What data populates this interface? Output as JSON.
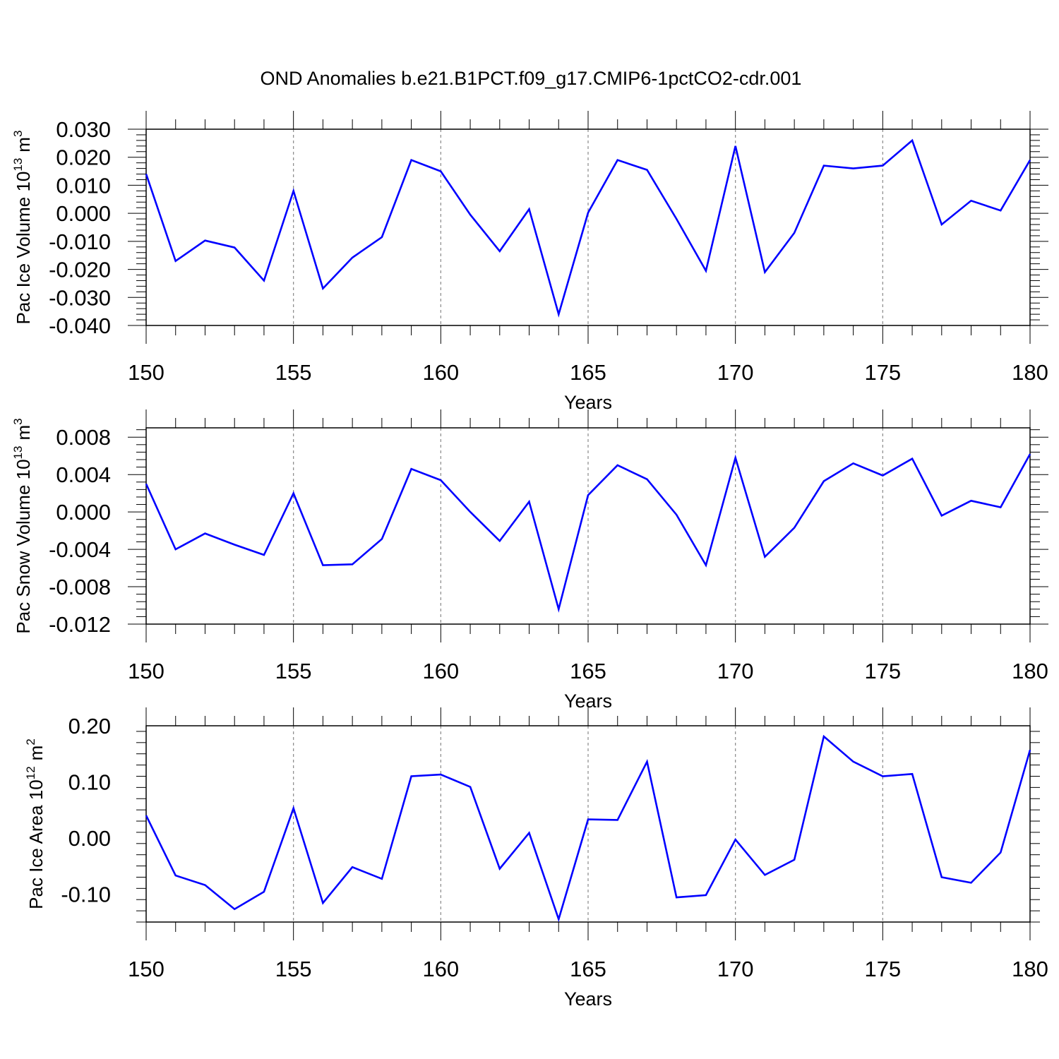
{
  "title": "OND Anomalies b.e21.B1PCT.f09_g17.CMIP6-1pctCO2-cdr.001",
  "chart_data": [
    {
      "type": "line",
      "ylabel": "Pac Ice Volume",
      "ylabel_unit_base": "10",
      "ylabel_unit_exp": "13",
      "ylabel_unit": "m",
      "ylabel_unit_unit_exp": "3",
      "xlabel": "Years",
      "xlim": [
        150,
        180
      ],
      "ylim": [
        -0.04,
        0.03
      ],
      "x_ticks": [
        "150",
        "155",
        "160",
        "165",
        "170",
        "175",
        "180"
      ],
      "y_ticks": [
        "0.030",
        "0.020",
        "0.010",
        "0.000",
        "-0.010",
        "-0.020",
        "-0.030",
        "-0.040"
      ],
      "color": "#0000ff",
      "x": [
        150,
        151,
        152,
        153,
        154,
        155,
        156,
        157,
        158,
        159,
        160,
        161,
        162,
        163,
        164,
        165,
        166,
        167,
        168,
        169,
        170,
        171,
        172,
        173,
        174,
        175,
        176,
        177,
        178,
        179,
        180
      ],
      "values": [
        0.014,
        -0.017,
        -0.0097,
        -0.0122,
        -0.024,
        0.008,
        -0.0268,
        -0.0158,
        -0.0085,
        0.019,
        0.015,
        -0.0005,
        -0.0135,
        0.0015,
        -0.036,
        0.0002,
        0.019,
        0.0155,
        -0.002,
        -0.0205,
        0.024,
        -0.021,
        -0.007,
        0.017,
        0.016,
        0.017,
        0.026,
        -0.004,
        0.0045,
        0.001,
        0.019
      ]
    },
    {
      "type": "line",
      "ylabel": "Pac Snow Volume",
      "ylabel_unit_base": "10",
      "ylabel_unit_exp": "13",
      "ylabel_unit": "m",
      "ylabel_unit_unit_exp": "3",
      "xlabel": "Years",
      "xlim": [
        150,
        180
      ],
      "ylim": [
        -0.012,
        0.009
      ],
      "x_ticks": [
        "150",
        "155",
        "160",
        "165",
        "170",
        "175",
        "180"
      ],
      "y_ticks": [
        "0.008",
        "0.004",
        "0.000",
        "-0.004",
        "-0.008",
        "-0.012"
      ],
      "color": "#0000ff",
      "x": [
        150,
        151,
        152,
        153,
        154,
        155,
        156,
        157,
        158,
        159,
        160,
        161,
        162,
        163,
        164,
        165,
        166,
        167,
        168,
        169,
        170,
        171,
        172,
        173,
        174,
        175,
        176,
        177,
        178,
        179,
        180
      ],
      "values": [
        0.003,
        -0.004,
        -0.0023,
        -0.0035,
        -0.0046,
        0.002,
        -0.0057,
        -0.0056,
        -0.0029,
        0.0046,
        0.0034,
        0.0,
        -0.0031,
        0.0011,
        -0.0104,
        0.0018,
        0.005,
        0.0035,
        -0.0003,
        -0.0057,
        0.0058,
        -0.0048,
        -0.0017,
        0.0033,
        0.0052,
        0.0039,
        0.0057,
        -0.0004,
        0.0012,
        0.0005,
        0.0062
      ]
    },
    {
      "type": "line",
      "ylabel": "Pac Ice Area",
      "ylabel_unit_base": "10",
      "ylabel_unit_exp": "12",
      "ylabel_unit": "m",
      "ylabel_unit_unit_exp": "2",
      "xlabel": "Years",
      "xlim": [
        150,
        180
      ],
      "ylim": [
        -0.15,
        0.2
      ],
      "x_ticks": [
        "150",
        "155",
        "160",
        "165",
        "170",
        "175",
        "180"
      ],
      "y_ticks": [
        "0.20",
        "0.10",
        "0.00",
        "-0.10"
      ],
      "color": "#0000ff",
      "x": [
        150,
        151,
        152,
        153,
        154,
        155,
        156,
        157,
        158,
        159,
        160,
        161,
        162,
        163,
        164,
        165,
        166,
        167,
        168,
        169,
        170,
        171,
        172,
        173,
        174,
        175,
        176,
        177,
        178,
        179,
        180
      ],
      "values": [
        0.04,
        -0.067,
        -0.084,
        -0.127,
        -0.096,
        0.053,
        -0.116,
        -0.052,
        -0.073,
        0.11,
        0.113,
        0.091,
        -0.055,
        0.009,
        -0.145,
        0.033,
        0.032,
        0.136,
        -0.106,
        -0.102,
        -0.003,
        -0.066,
        -0.039,
        0.181,
        0.136,
        0.11,
        0.114,
        -0.07,
        -0.08,
        -0.026,
        0.157
      ]
    }
  ]
}
